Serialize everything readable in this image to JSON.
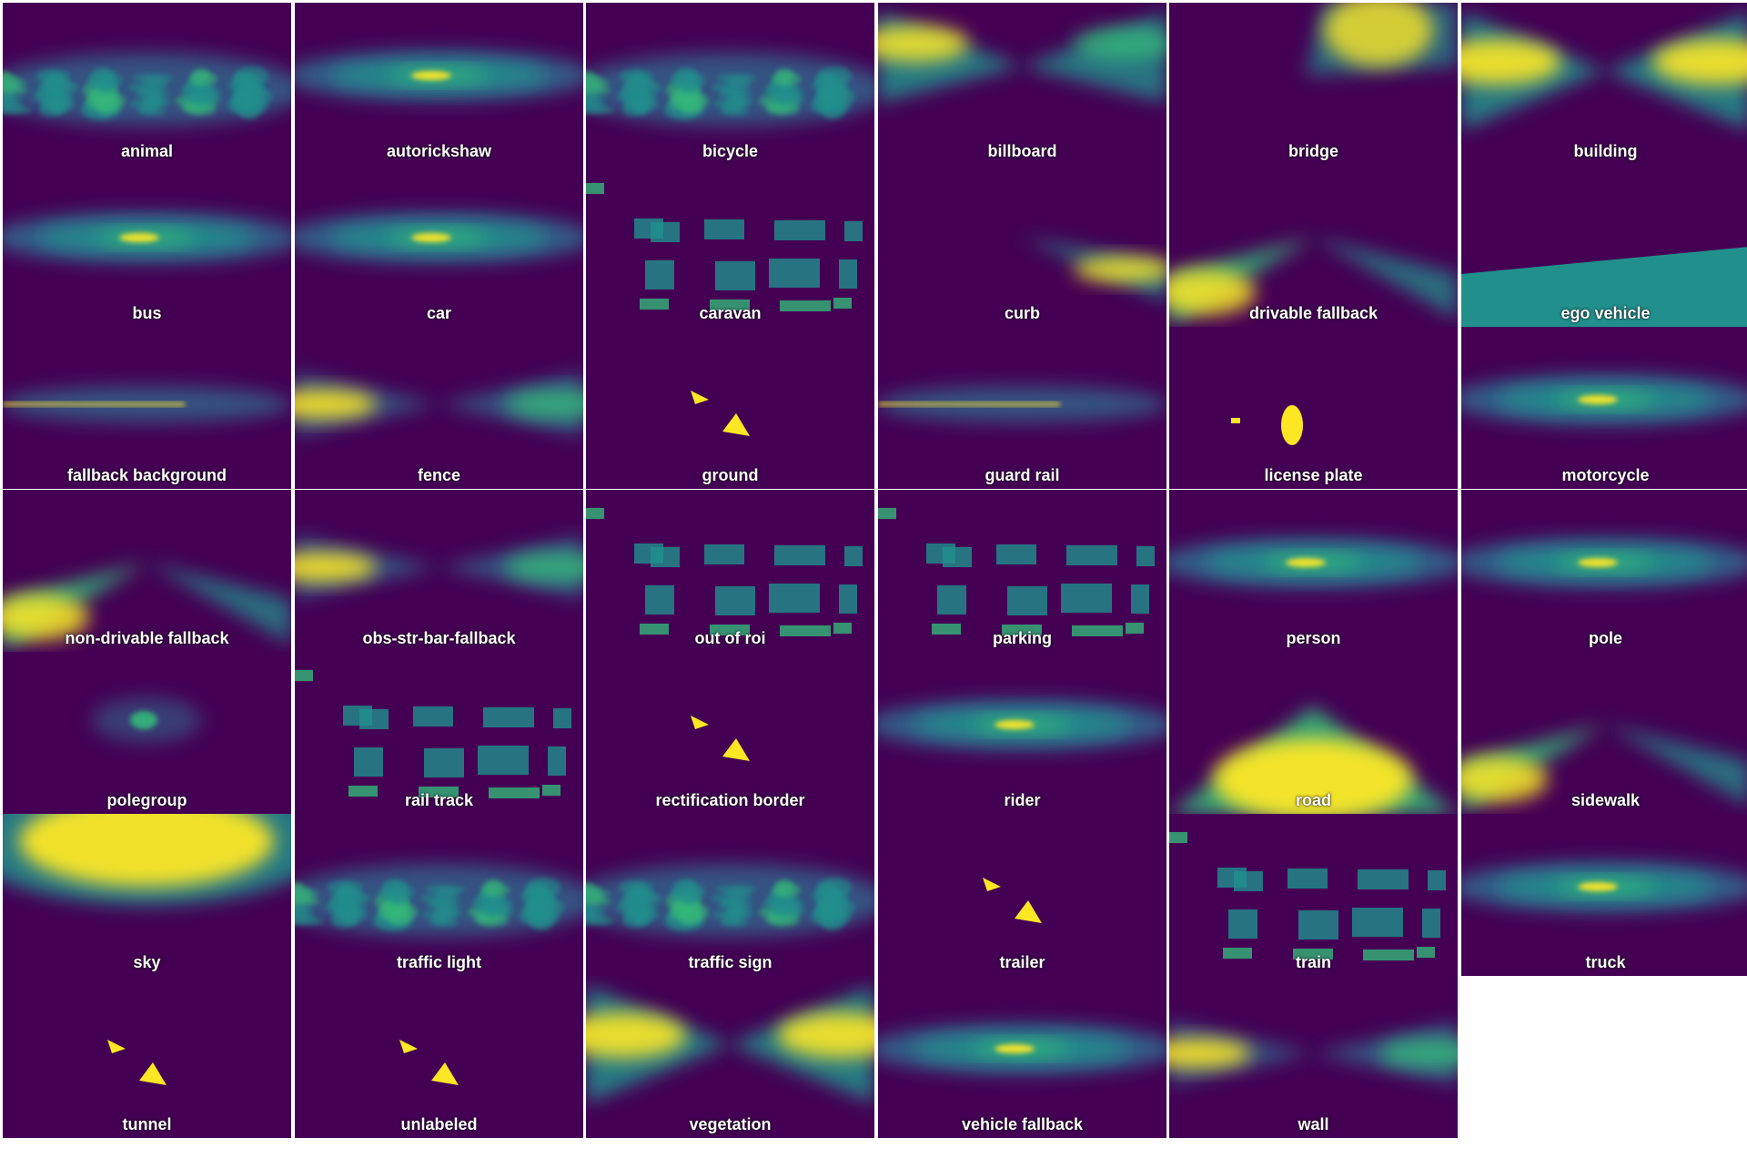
{
  "colormap": {
    "low": "#440154",
    "mid_dark": "#31688e",
    "mid": "#21908d",
    "mid_light": "#35b779",
    "high": "#fde725"
  },
  "tiles": [
    {
      "label": "animal",
      "pattern": "noise-band"
    },
    {
      "label": "autorickshaw",
      "pattern": "band-center"
    },
    {
      "label": "bicycle",
      "pattern": "noise-band"
    },
    {
      "label": "billboard",
      "pattern": "bowtie-upper"
    },
    {
      "label": "bridge",
      "pattern": "upper-right"
    },
    {
      "label": "building",
      "pattern": "bowtie-wide"
    },
    {
      "label": "bus",
      "pattern": "band-center"
    },
    {
      "label": "car",
      "pattern": "band-center"
    },
    {
      "label": "caravan",
      "pattern": "patches"
    },
    {
      "label": "curb",
      "pattern": "lower-right-ray"
    },
    {
      "label": "drivable fallback",
      "pattern": "lower-rays"
    },
    {
      "label": "ego vehicle",
      "pattern": "ego"
    },
    {
      "label": "fallback background",
      "pattern": "thin-line"
    },
    {
      "label": "fence",
      "pattern": "bowtie"
    },
    {
      "label": "ground",
      "pattern": "shapes"
    },
    {
      "label": "guard rail",
      "pattern": "thin-line"
    },
    {
      "label": "license plate",
      "pattern": "blob"
    },
    {
      "label": "motorcycle",
      "pattern": "band-center"
    },
    {
      "label": "non-drivable fallback",
      "pattern": "lower-rays"
    },
    {
      "label": "obs-str-bar-fallback",
      "pattern": "bowtie"
    },
    {
      "label": "out of roi",
      "pattern": "patches"
    },
    {
      "label": "parking",
      "pattern": "patches"
    },
    {
      "label": "person",
      "pattern": "band-center"
    },
    {
      "label": "pole",
      "pattern": "band-center"
    },
    {
      "label": "polegroup",
      "pattern": "small-center"
    },
    {
      "label": "rail track",
      "pattern": "patches"
    },
    {
      "label": "rectification border",
      "pattern": "shapes"
    },
    {
      "label": "rider",
      "pattern": "band-center"
    },
    {
      "label": "road",
      "pattern": "road"
    },
    {
      "label": "sidewalk",
      "pattern": "lower-rays"
    },
    {
      "label": "sky",
      "pattern": "sky"
    },
    {
      "label": "traffic light",
      "pattern": "noise-band"
    },
    {
      "label": "traffic sign",
      "pattern": "noise-band"
    },
    {
      "label": "trailer",
      "pattern": "shapes"
    },
    {
      "label": "train",
      "pattern": "patches"
    },
    {
      "label": "truck",
      "pattern": "band-center"
    },
    {
      "label": "tunnel",
      "pattern": "shapes"
    },
    {
      "label": "unlabeled",
      "pattern": "shapes"
    },
    {
      "label": "vegetation",
      "pattern": "bowtie-wide"
    },
    {
      "label": "vehicle fallback",
      "pattern": "band-center"
    },
    {
      "label": "wall",
      "pattern": "bowtie"
    }
  ]
}
